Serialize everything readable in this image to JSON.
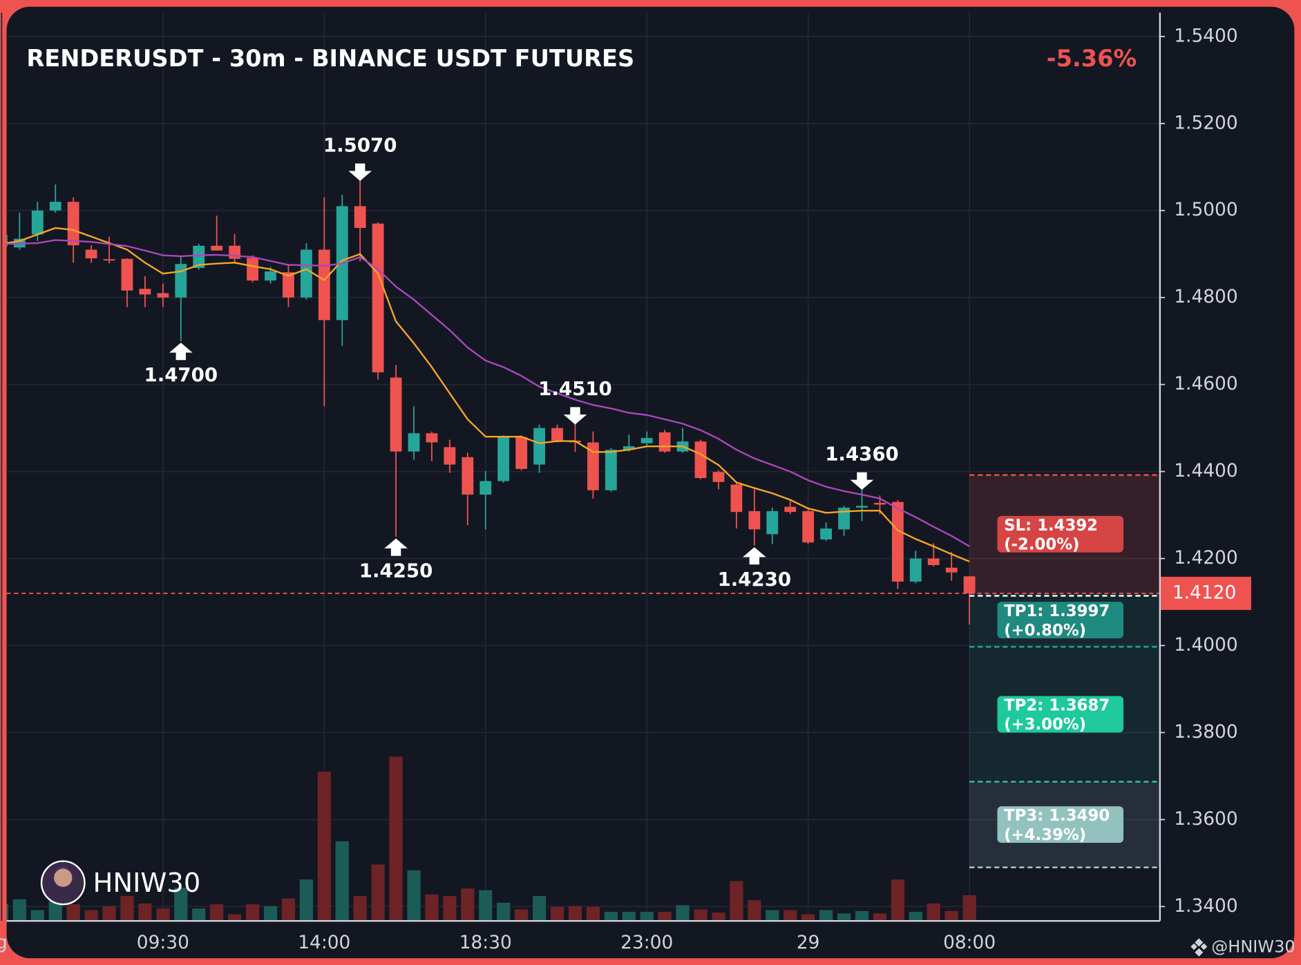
{
  "chart_data": {
    "type": "candlestick",
    "title": "RENDERUSDT - 30m - BINANCE USDT FUTURES",
    "change": {
      "value": -5.36,
      "label": "-5.36%"
    },
    "categories": [
      "g",
      null,
      null,
      null,
      null,
      null,
      null,
      null,
      null,
      "09:30",
      null,
      null,
      null,
      null,
      null,
      null,
      null,
      null,
      "14:00",
      null,
      null,
      null,
      null,
      null,
      null,
      null,
      null,
      "18:30",
      null,
      null,
      null,
      null,
      null,
      null,
      null,
      null,
      "23:00",
      null,
      null,
      null,
      null,
      null,
      null,
      null,
      null,
      "29",
      null,
      null,
      null,
      null,
      null,
      null,
      null,
      null,
      "08:00"
    ],
    "open": [
      1.4917,
      1.4915,
      1.4945,
      1.5,
      1.502,
      1.491,
      1.4888,
      1.4889,
      1.482,
      1.481,
      1.48,
      1.4868,
      1.4919,
      1.4919,
      1.4891,
      1.4839,
      1.4858,
      1.48,
      1.491,
      1.4748,
      1.501,
      1.497,
      1.4616,
      1.4446,
      1.4488,
      1.4456,
      1.4433,
      1.4347,
      1.4378,
      1.4479,
      1.4416,
      1.45,
      1.4471,
      1.4467,
      1.4357,
      1.445,
      1.4465,
      1.449,
      1.4446,
      1.4469,
      1.4399,
      1.437,
      1.4309,
      1.4256,
      1.4319,
      1.4309,
      1.4244,
      1.4267,
      1.4317,
      1.4328,
      1.433,
      1.4147,
      1.42,
      1.4179,
      1.4159
    ],
    "high": [
      1.4948,
      1.4995,
      1.502,
      1.506,
      1.503,
      1.492,
      1.494,
      1.489,
      1.4849,
      1.4832,
      1.4893,
      1.4923,
      1.4988,
      1.4946,
      1.4897,
      1.487,
      1.4877,
      1.4925,
      1.503,
      1.5036,
      1.507,
      1.4973,
      1.4645,
      1.455,
      1.4492,
      1.4473,
      1.4443,
      1.4401,
      1.4483,
      1.4483,
      1.4508,
      1.4508,
      1.451,
      1.4492,
      1.4454,
      1.4485,
      1.4492,
      1.4496,
      1.45,
      1.4473,
      1.4403,
      1.4374,
      1.4359,
      1.4317,
      1.4336,
      1.4313,
      1.4283,
      1.4321,
      1.436,
      1.4345,
      1.4334,
      1.4218,
      1.4235,
      1.4215,
      1.4159
    ],
    "low": [
      1.4913,
      1.491,
      1.493,
      1.4995,
      1.488,
      1.488,
      1.4878,
      1.4778,
      1.4778,
      1.4778,
      1.47,
      1.4864,
      1.4908,
      1.4881,
      1.4835,
      1.4832,
      1.4778,
      1.4795,
      1.455,
      1.4689,
      1.4883,
      1.4611,
      1.425,
      1.4427,
      1.4424,
      1.4397,
      1.4277,
      1.4267,
      1.4374,
      1.4403,
      1.4397,
      1.4467,
      1.4445,
      1.4338,
      1.4353,
      1.4446,
      1.446,
      1.4443,
      1.4443,
      1.4382,
      1.4359,
      1.4269,
      1.423,
      1.4233,
      1.4302,
      1.4233,
      1.424,
      1.4252,
      1.4286,
      1.4302,
      1.413,
      1.4143,
      1.4182,
      1.4149,
      1.4048
    ],
    "close": [
      1.4944,
      1.4935,
      1.5,
      1.502,
      1.492,
      1.489,
      1.4885,
      1.4816,
      1.4807,
      1.48,
      1.4877,
      1.4919,
      1.4908,
      1.4889,
      1.4839,
      1.486,
      1.48,
      1.491,
      1.4748,
      1.501,
      1.496,
      1.4628,
      1.4446,
      1.4488,
      1.4467,
      1.4416,
      1.4347,
      1.4378,
      1.4479,
      1.4406,
      1.45,
      1.4471,
      1.4467,
      1.4357,
      1.445,
      1.4458,
      1.4477,
      1.4446,
      1.4469,
      1.4385,
      1.4376,
      1.4307,
      1.4267,
      1.4309,
      1.4307,
      1.4237,
      1.4269,
      1.4317,
      1.4321,
      1.4324,
      1.4147,
      1.42,
      1.4185,
      1.4168,
      1.412
    ],
    "volume": [
      20,
      26,
      13,
      24,
      20,
      13,
      18,
      30,
      21,
      15,
      40,
      15,
      20,
      8,
      20,
      18,
      27,
      50,
      180,
      96,
      30,
      68,
      198,
      61,
      32,
      30,
      39,
      37,
      22,
      14,
      30,
      17,
      18,
      17,
      11,
      11,
      11,
      11,
      19,
      14,
      10,
      48,
      25,
      13,
      13,
      8,
      13,
      9,
      12,
      9,
      50,
      11,
      21,
      12,
      31
    ],
    "colors": {
      "up": "#26a69a",
      "down": "#ef5350",
      "volume_up": "#1c5c57",
      "volume_down": "#6e2327"
    },
    "lines": [
      {
        "color": "#f5a623",
        "values": [
          1.4923,
          1.493,
          1.4945,
          1.496,
          1.4955,
          1.494,
          1.4925,
          1.491,
          1.488,
          1.4855,
          1.486,
          1.4875,
          1.4878,
          1.488,
          1.4872,
          1.4865,
          1.485,
          1.4865,
          1.484,
          1.4885,
          1.49,
          1.4855,
          1.4745,
          1.4695,
          1.464,
          1.458,
          1.452,
          1.448,
          1.448,
          1.448,
          1.4465,
          1.447,
          1.447,
          1.4445,
          1.4445,
          1.445,
          1.4458,
          1.4458,
          1.4458,
          1.444,
          1.4415,
          1.4375,
          1.4362,
          1.435,
          1.4335,
          1.4315,
          1.4305,
          1.4308,
          1.431,
          1.431,
          1.4265,
          1.4245,
          1.4228,
          1.421,
          1.4193
        ]
      },
      {
        "color": "#ab47bc",
        "values": [
          1.4923,
          1.4924,
          1.4925,
          1.4932,
          1.493,
          1.4928,
          1.4923,
          1.4918,
          1.4908,
          1.4897,
          1.4895,
          1.4897,
          1.4898,
          1.4896,
          1.4893,
          1.4884,
          1.4875,
          1.4874,
          1.4873,
          1.4878,
          1.4893,
          1.4865,
          1.4825,
          1.4795,
          1.476,
          1.4725,
          1.4685,
          1.4655,
          1.464,
          1.462,
          1.4595,
          1.458,
          1.4565,
          1.4553,
          1.4545,
          1.4535,
          1.453,
          1.452,
          1.451,
          1.4495,
          1.4475,
          1.445,
          1.443,
          1.4415,
          1.44,
          1.438,
          1.4365,
          1.4355,
          1.4347,
          1.4338,
          1.4315,
          1.4295,
          1.4273,
          1.4252,
          1.4228
        ]
      }
    ],
    "ylim": [
      1.3367,
      1.5455
    ],
    "yticks": [
      {
        "value": 1.34,
        "label": "1.3400"
      },
      {
        "value": 1.36,
        "label": "1.3600"
      },
      {
        "value": 1.38,
        "label": "1.3800"
      },
      {
        "value": 1.4,
        "label": "1.4000"
      },
      {
        "value": 1.42,
        "label": "1.4200"
      },
      {
        "value": 1.44,
        "label": "1.4400"
      },
      {
        "value": 1.46,
        "label": "1.4600"
      },
      {
        "value": 1.48,
        "label": "1.4800"
      },
      {
        "value": 1.5,
        "label": "1.5000"
      },
      {
        "value": 1.52,
        "label": "1.5200"
      },
      {
        "value": 1.54,
        "label": "1.5400"
      }
    ],
    "grid": true,
    "last_price": {
      "value": 1.412,
      "label": "1.4120",
      "color": "#ef5350"
    },
    "annotations": [
      {
        "kind": "high",
        "value": 1.507,
        "label": "1.5070"
      },
      {
        "kind": "low",
        "value": 1.47,
        "label": "1.4700"
      },
      {
        "kind": "low",
        "value": 1.425,
        "label": "1.4250"
      },
      {
        "kind": "high",
        "value": 1.451,
        "label": "1.4510"
      },
      {
        "kind": "low",
        "value": 1.423,
        "label": "1.4230"
      },
      {
        "kind": "high",
        "value": 1.436,
        "label": "1.4360"
      }
    ],
    "levels": [
      {
        "value": 1.4392,
        "label": "SL: 1.4392",
        "pct_label": "(-2.00%)",
        "color": "#ef5350",
        "box_color": "#d64545",
        "zone_color": "rgba(239,83,80,0.16)"
      },
      {
        "value": 1.3997,
        "label": "TP1: 1.3997",
        "pct_label": "(+0.80%)",
        "color": "#26a69a",
        "box_color": "#1f8a80",
        "zone_color": "rgba(38,166,154,0.12)"
      },
      {
        "value": 1.3687,
        "label": "TP2: 1.3687",
        "pct_label": "(+3.00%)",
        "color": "#1fd1a5",
        "box_color": "#1ec99b",
        "zone_color": "rgba(38,166,154,0.12)"
      },
      {
        "value": 1.349,
        "label": "TP3: 1.3490",
        "pct_label": "(+4.39%)",
        "color": "#a8d4d0",
        "box_color": "#93c2be",
        "zone_color": "rgba(150,170,190,0.16)"
      }
    ],
    "watermark": "HNIW30",
    "credit": "@HNIW30"
  }
}
